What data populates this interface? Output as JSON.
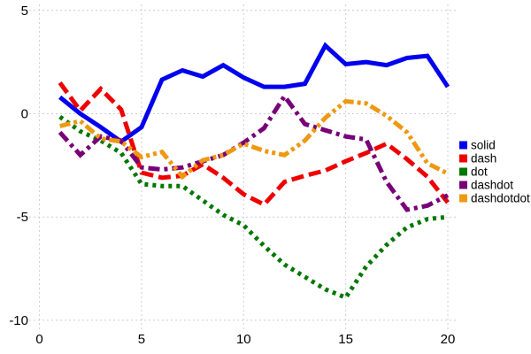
{
  "chart_data": {
    "type": "line",
    "title": "",
    "xlabel": "",
    "ylabel": "",
    "xlim": [
      0,
      20
    ],
    "ylim": [
      -10,
      5
    ],
    "x_ticks": [
      0,
      5,
      10,
      15,
      20
    ],
    "y_ticks": [
      5,
      0,
      -5,
      -10
    ],
    "grid": true,
    "grid_color": "#ccccdd",
    "legend_position": "right",
    "x": [
      1,
      2,
      3,
      4,
      5,
      6,
      7,
      8,
      9,
      10,
      11,
      12,
      13,
      14,
      15,
      16,
      17,
      18,
      19,
      20
    ],
    "series": [
      {
        "name": "solid",
        "color": "#0000ee",
        "dash": "solid",
        "values": [
          0.8,
          0.0,
          -0.65,
          -1.35,
          -0.65,
          1.65,
          2.1,
          1.8,
          2.35,
          1.75,
          1.3,
          1.3,
          1.45,
          3.3,
          2.4,
          2.5,
          2.35,
          2.7,
          2.8,
          1.3
        ]
      },
      {
        "name": "dash",
        "color": "#ee0000",
        "dash": "dash",
        "values": [
          1.5,
          0.15,
          1.2,
          0.2,
          -2.85,
          -3.1,
          -3.0,
          -2.45,
          -3.1,
          -3.9,
          -4.4,
          -3.3,
          -3.0,
          -2.75,
          -2.3,
          -1.9,
          -1.45,
          -2.2,
          -3.05,
          -4.3
        ]
      },
      {
        "name": "dot",
        "color": "#007700",
        "dash": "dot",
        "values": [
          -0.15,
          -0.85,
          -1.3,
          -1.9,
          -3.4,
          -3.5,
          -3.5,
          -4.2,
          -4.9,
          -5.4,
          -6.4,
          -7.3,
          -7.9,
          -8.5,
          -8.9,
          -7.4,
          -6.35,
          -5.5,
          -5.1,
          -5.0
        ]
      },
      {
        "name": "dashdot",
        "color": "#770077",
        "dash": "dashdot",
        "values": [
          -0.9,
          -2.0,
          -1.1,
          -1.3,
          -2.6,
          -2.7,
          -2.6,
          -2.3,
          -2.0,
          -1.4,
          -0.7,
          0.85,
          -0.5,
          -0.8,
          -1.1,
          -1.25,
          -3.3,
          -4.65,
          -4.45,
          -3.95
        ]
      },
      {
        "name": "dashdotdot",
        "color": "#ee9911",
        "dash": "dashdotdot",
        "values": [
          -0.6,
          -0.35,
          -1.2,
          -1.35,
          -2.1,
          -1.85,
          -3.05,
          -2.25,
          -2.0,
          -1.45,
          -1.8,
          -2.0,
          -1.3,
          -0.2,
          0.6,
          0.5,
          -0.1,
          -0.9,
          -2.4,
          -2.9
        ]
      }
    ]
  }
}
